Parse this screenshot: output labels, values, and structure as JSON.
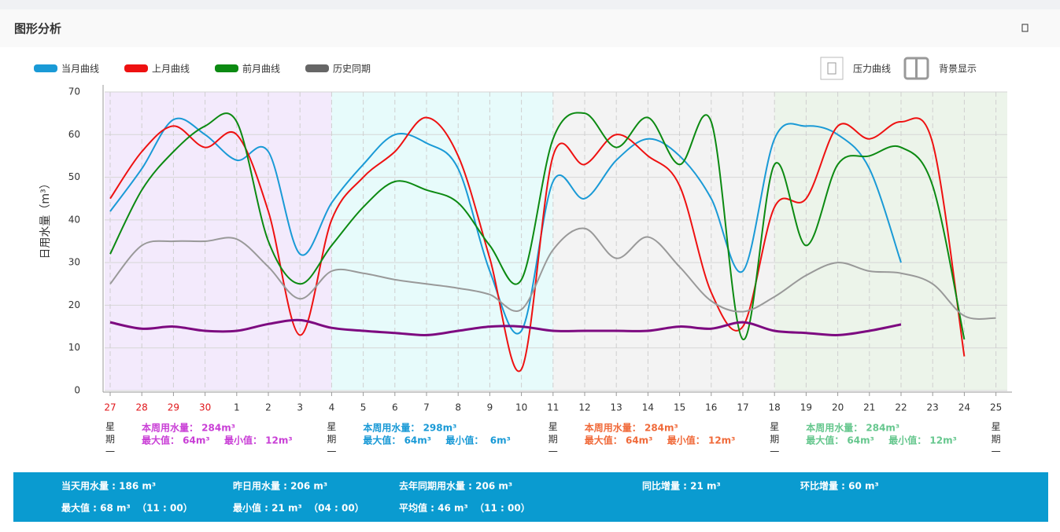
{
  "header": {
    "title": "图形分析"
  },
  "controls": {
    "pressure": "压力曲线",
    "background": "背景显示"
  },
  "chart_data": {
    "type": "line",
    "y_label": "日用水量（m³）",
    "categories": [
      "27",
      "28",
      "29",
      "30",
      "1",
      "2",
      "3",
      "4",
      "5",
      "6",
      "7",
      "8",
      "9",
      "10",
      "11",
      "12",
      "13",
      "14",
      "15",
      "16",
      "17",
      "18",
      "19",
      "20",
      "21",
      "22",
      "23",
      "24",
      "25"
    ],
    "x_label_colors": [
      "#e0161a",
      "#e0161a",
      "#e0161a",
      "#e0161a",
      "#333",
      "#333",
      "#333",
      "#333",
      "#333",
      "#333",
      "#333",
      "#333",
      "#333",
      "#333",
      "#333",
      "#333",
      "#333",
      "#333",
      "#333",
      "#333",
      "#333",
      "#333",
      "#333",
      "#333",
      "#333",
      "#333",
      "#333",
      "#333",
      "#333"
    ],
    "ylim": [
      0,
      70
    ],
    "yticks": [
      0,
      10,
      20,
      30,
      40,
      50,
      60,
      70
    ],
    "grid": true,
    "series": [
      {
        "name": "当月曲线",
        "color": "#1a9ad6",
        "values": [
          42,
          52,
          63.5,
          60,
          54,
          56,
          32,
          44,
          53,
          60,
          58,
          52,
          28,
          14,
          49,
          45,
          54,
          59,
          55,
          45,
          28,
          59,
          62,
          60,
          52,
          30,
          null,
          null,
          null
        ]
      },
      {
        "name": "上月曲线",
        "color": "#ee1111",
        "values": [
          45,
          56,
          62,
          57,
          60,
          42,
          13,
          40,
          50,
          56,
          64,
          55,
          31,
          5,
          55,
          53,
          60,
          55,
          48,
          23,
          15,
          43,
          45,
          62,
          59,
          63,
          58,
          8,
          null
        ]
      },
      {
        "name": "前月曲线",
        "color": "#0c8a12",
        "values": [
          32,
          47,
          56,
          62,
          63,
          35,
          25,
          34,
          43,
          49,
          47,
          44,
          34,
          26,
          59,
          65,
          57,
          64,
          53,
          63,
          12,
          53,
          34,
          53,
          55,
          57,
          48,
          12,
          null
        ]
      },
      {
        "name": "历史同期",
        "color": "#999999",
        "legend_color": "#666666",
        "values": [
          25,
          34,
          35,
          35,
          35.5,
          29,
          21.5,
          28,
          27.5,
          26,
          25,
          24,
          22.5,
          19,
          33,
          38,
          31,
          36,
          29,
          21,
          18.5,
          22,
          27,
          30,
          28,
          27.5,
          25,
          17.5,
          17
        ]
      },
      {
        "color": "#7d0a80",
        "width": 3,
        "values": [
          16,
          14.5,
          15,
          14,
          14,
          15.6,
          16.5,
          14.7,
          14,
          13.5,
          13,
          14,
          15,
          15,
          14,
          14,
          14,
          14,
          15,
          14.5,
          16,
          14,
          13.5,
          13,
          14,
          15.5,
          null,
          null,
          null
        ]
      }
    ],
    "weeks": [
      {
        "start": 0,
        "background": "#f3eafc",
        "color": "#c93fd6",
        "label": "星期一",
        "total": "本周用水量： 284m³",
        "max": "最大值： 64m³",
        "min": "最小值： 12m³"
      },
      {
        "start": 7,
        "background": "#e7fbfb",
        "color": "#1a9ad6",
        "label": "星期一",
        "total": "本周用水量： 298m³",
        "max": "最大值： 64m³",
        "min": "最小值：  6m³"
      },
      {
        "start": 14,
        "background": "#f3f3f3",
        "color": "#f06a3a",
        "label": "星期一",
        "total": "本周用水量： 284m³",
        "max": "最大值： 64m³",
        "min": "最小值： 12m³"
      },
      {
        "start": 21,
        "background": "#ecf4ea",
        "color": "#66c78e",
        "label": "星期一",
        "total": "本周用水量： 284m³",
        "max": "最大值： 64m³",
        "min": "最小值： 12m³"
      }
    ],
    "end_week_label": "星期一"
  },
  "summary": {
    "rows": [
      [
        "当天用水量 : 186 m³",
        "昨日用水量 : 206 m³",
        "去年同期用水量 : 206 m³",
        "同比增量 : 21 m³",
        "环比增量 : 60 m³"
      ],
      [
        "最大值 : 68 m³  （11 : 00）",
        "最小值 : 21 m³  （04 : 00）",
        "平均值 : 46 m³  （11 : 00）"
      ]
    ]
  }
}
